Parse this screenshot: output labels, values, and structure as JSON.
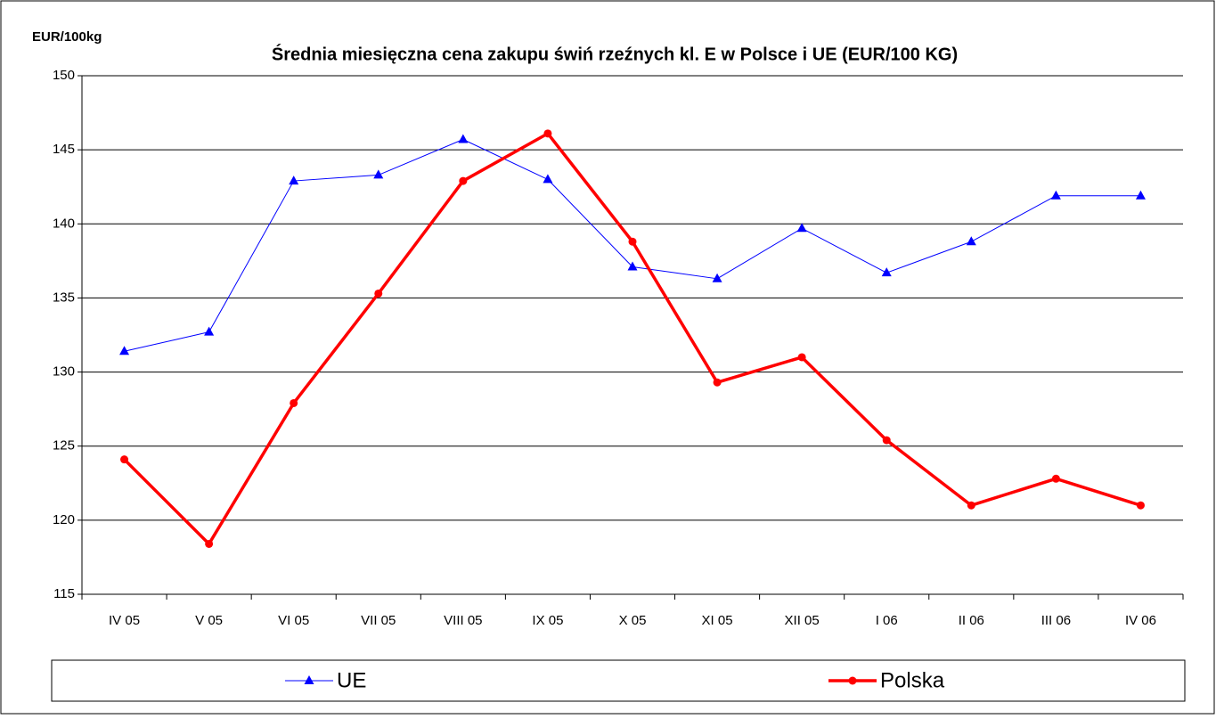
{
  "chart_data": {
    "type": "line",
    "title": "Średnia miesięczna cena zakupu świń rzeźnych kl. E w  Polsce i UE (EUR/100 KG)",
    "y_label": "EUR/100kg",
    "categories": [
      "IV  05",
      "V 05",
      "VI 05",
      "VII 05",
      "VIII 05",
      "IX 05",
      "X 05",
      "XI 05",
      "XII 05",
      "I 06",
      "II 06",
      "III 06",
      "IV 06"
    ],
    "series": [
      {
        "name": "UE",
        "color": "#0000ff",
        "marker": "triangle",
        "width": 1,
        "values": [
          131.4,
          132.7,
          142.9,
          143.3,
          145.7,
          143.0,
          137.1,
          136.3,
          139.7,
          136.7,
          138.8,
          141.9,
          141.9
        ]
      },
      {
        "name": "Polska",
        "color": "#ff0000",
        "marker": "circle",
        "width": 3.5,
        "values": [
          124.1,
          118.4,
          127.9,
          135.3,
          142.9,
          146.1,
          138.8,
          129.3,
          131.0,
          125.4,
          121.0,
          122.8,
          121.0
        ]
      }
    ],
    "ylim": [
      115,
      150
    ],
    "yticks": [
      115,
      120,
      125,
      130,
      135,
      140,
      145,
      150
    ],
    "grid": true,
    "legend": "bottom"
  }
}
